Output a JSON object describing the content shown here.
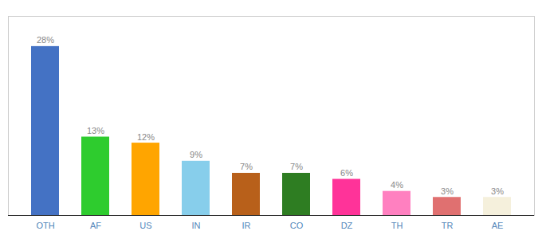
{
  "chart_data": {
    "type": "bar",
    "categories": [
      "OTH",
      "AF",
      "US",
      "IN",
      "IR",
      "CO",
      "DZ",
      "TH",
      "TR",
      "AE"
    ],
    "values": [
      28,
      13,
      12,
      9,
      7,
      7,
      6,
      4,
      3,
      3
    ],
    "value_labels": [
      "28%",
      "13%",
      "12%",
      "9%",
      "7%",
      "7%",
      "6%",
      "4%",
      "3%",
      "3%"
    ],
    "colors": [
      "#4472C4",
      "#2ECC2E",
      "#FFA500",
      "#87CEEB",
      "#B8601A",
      "#2E7D22",
      "#FF3399",
      "#FF80C0",
      "#E07070",
      "#F5F0DC"
    ],
    "ylim": [
      0,
      33
    ],
    "data_labels": true,
    "tick_labels": "x",
    "grid": false
  }
}
